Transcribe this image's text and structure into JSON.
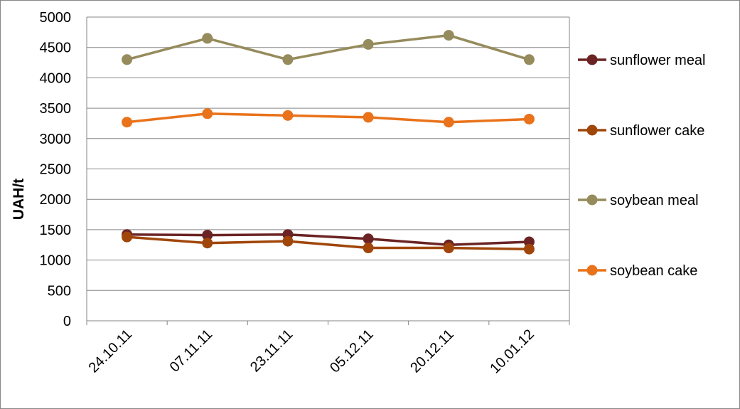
{
  "chart_data": {
    "type": "line",
    "ylabel": "UAH/t",
    "xlabel": "",
    "title": "",
    "categories": [
      "24.10.11",
      "07.11.11",
      "23.11.11",
      "05.12.11",
      "20.12.11",
      "10.01.12"
    ],
    "ylim": [
      0,
      5000
    ],
    "yticks": [
      0,
      500,
      1000,
      1500,
      2000,
      2500,
      3000,
      3500,
      4000,
      4500,
      5000
    ],
    "grid": true,
    "legend": "right",
    "series": [
      {
        "name": "sunflower meal",
        "color": "#6B2323",
        "values": [
          1420,
          1410,
          1420,
          1350,
          1250,
          1300
        ]
      },
      {
        "name": "sunflower cake",
        "color": "#A0460A",
        "values": [
          1380,
          1280,
          1310,
          1200,
          1200,
          1180
        ]
      },
      {
        "name": "soybean meal",
        "color": "#958B5C",
        "values": [
          4300,
          4650,
          4300,
          4550,
          4700,
          4300
        ]
      },
      {
        "name": "soybean cake",
        "color": "#E9721A",
        "values": [
          3270,
          3410,
          3380,
          3350,
          3270,
          3320
        ]
      }
    ]
  }
}
